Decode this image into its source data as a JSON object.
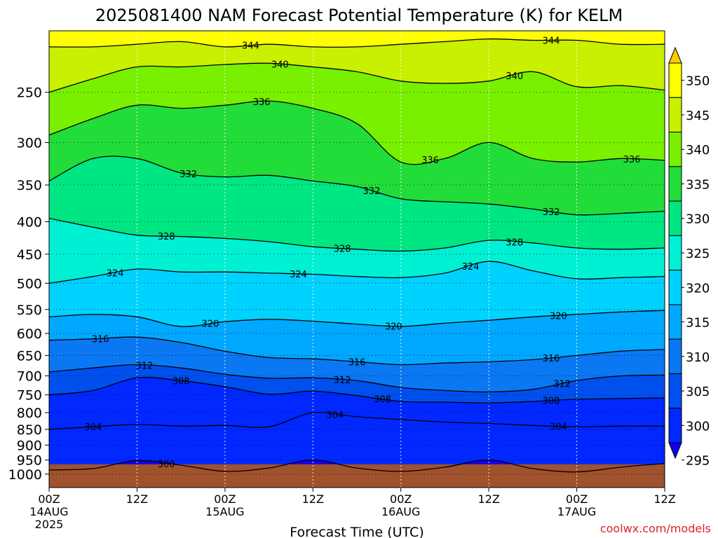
{
  "chart_data": {
    "type": "contour",
    "title": "2025081400 NAM Forecast Potential Temperature (K) for KELM",
    "xlabel": "Forecast Time (UTC)",
    "ylabel": "",
    "credit": "coolwx.com/models",
    "y_axis": {
      "scale": "log",
      "reversed": true,
      "range": [
        200,
        1050
      ],
      "ticks": [
        250,
        300,
        350,
        400,
        450,
        500,
        550,
        600,
        650,
        700,
        750,
        800,
        850,
        900,
        950,
        1000
      ]
    },
    "x_axis": {
      "range_hours": [
        0,
        84
      ],
      "ticks": [
        {
          "hour": 0,
          "label": "00Z",
          "sub": "14AUG",
          "sub2": "2025"
        },
        {
          "hour": 12,
          "label": "12Z",
          "sub": "",
          "sub2": ""
        },
        {
          "hour": 24,
          "label": "00Z",
          "sub": "15AUG",
          "sub2": ""
        },
        {
          "hour": 36,
          "label": "12Z",
          "sub": "",
          "sub2": ""
        },
        {
          "hour": 48,
          "label": "00Z",
          "sub": "16AUG",
          "sub2": ""
        },
        {
          "hour": 60,
          "label": "12Z",
          "sub": "",
          "sub2": ""
        },
        {
          "hour": 72,
          "label": "00Z",
          "sub": "17AUG",
          "sub2": ""
        },
        {
          "hour": 84,
          "label": "12Z",
          "sub": "",
          "sub2": ""
        }
      ]
    },
    "colorbar": {
      "labels": [
        295,
        300,
        305,
        310,
        315,
        320,
        325,
        330,
        335,
        340,
        345,
        350
      ],
      "colors": [
        "#1400e8",
        "#0028ff",
        "#0050ee",
        "#0a78f2",
        "#00a8ff",
        "#00d2ff",
        "#00f0d4",
        "#00e682",
        "#22dc3a",
        "#78f000",
        "#c8f000",
        "#ffff00",
        "#ffcc00"
      ]
    },
    "fill_levels": [
      {
        "value": 300,
        "color": "#0028ff"
      },
      {
        "value": 305,
        "color": "#0050ee"
      },
      {
        "value": 310,
        "color": "#0a78f2"
      },
      {
        "value": 315,
        "color": "#00a8ff"
      },
      {
        "value": 320,
        "color": "#00d2ff"
      },
      {
        "value": 325,
        "color": "#00f0d4"
      },
      {
        "value": 330,
        "color": "#00e682"
      },
      {
        "value": 335,
        "color": "#22dc3a"
      },
      {
        "value": 340,
        "color": "#78f000"
      },
      {
        "value": 345,
        "color": "#c8f000"
      },
      {
        "value": 350,
        "color": "#ffff00"
      }
    ],
    "below_ground_color": "#a0522d",
    "ground_pressure": 965,
    "series": [
      {
        "value": 300,
        "label": "300",
        "hours": [
          0,
          6,
          12,
          18,
          24,
          30,
          36,
          42,
          48,
          54,
          60,
          66,
          72,
          78,
          84
        ],
        "pressure": [
          985,
          980,
          952,
          968,
          990,
          978,
          950,
          978,
          990,
          975,
          950,
          980,
          992,
          975,
          962
        ]
      },
      {
        "value": 304,
        "label": "304",
        "hours": [
          0,
          6,
          12,
          18,
          24,
          30,
          36,
          42,
          48,
          54,
          60,
          66,
          72,
          78,
          84
        ],
        "pressure": [
          850,
          842,
          835,
          840,
          838,
          842,
          800,
          812,
          820,
          828,
          832,
          838,
          842,
          840,
          840
        ]
      },
      {
        "value": 308,
        "label": "308",
        "hours": [
          0,
          6,
          12,
          18,
          24,
          30,
          36,
          42,
          48,
          54,
          60,
          66,
          72,
          78,
          84
        ],
        "pressure": [
          750,
          738,
          705,
          712,
          728,
          748,
          740,
          752,
          768,
          770,
          772,
          768,
          762,
          760,
          758
        ]
      },
      {
        "value": 312,
        "label": "312",
        "hours": [
          0,
          6,
          12,
          18,
          24,
          30,
          36,
          42,
          48,
          54,
          60,
          66,
          72,
          78,
          84
        ],
        "pressure": [
          690,
          680,
          672,
          680,
          696,
          706,
          705,
          712,
          730,
          738,
          742,
          735,
          712,
          700,
          698
        ]
      },
      {
        "value": 316,
        "label": "316",
        "hours": [
          0,
          6,
          12,
          18,
          24,
          30,
          36,
          42,
          48,
          54,
          60,
          66,
          72,
          78,
          84
        ],
        "pressure": [
          615,
          612,
          608,
          620,
          640,
          655,
          658,
          665,
          672,
          668,
          665,
          660,
          650,
          640,
          636
        ]
      },
      {
        "value": 320,
        "label": "320",
        "hours": [
          0,
          6,
          12,
          18,
          24,
          30,
          36,
          42,
          48,
          54,
          60,
          66,
          72,
          78,
          84
        ],
        "pressure": [
          565,
          560,
          565,
          585,
          575,
          570,
          574,
          580,
          585,
          578,
          572,
          565,
          560,
          555,
          552
        ]
      },
      {
        "value": 324,
        "label": "324",
        "hours": [
          0,
          6,
          12,
          18,
          24,
          30,
          36,
          42,
          48,
          54,
          60,
          66,
          72,
          78,
          84
        ],
        "pressure": [
          500,
          488,
          475,
          480,
          480,
          482,
          484,
          488,
          490,
          482,
          462,
          478,
          492,
          490,
          488
        ]
      },
      {
        "value": 328,
        "label": "328",
        "hours": [
          0,
          6,
          12,
          18,
          24,
          30,
          36,
          42,
          48,
          54,
          60,
          66,
          72,
          78,
          84
        ],
        "pressure": [
          395,
          408,
          420,
          422,
          425,
          430,
          438,
          442,
          445,
          440,
          428,
          432,
          440,
          442,
          440
        ]
      },
      {
        "value": 332,
        "label": "332",
        "hours": [
          0,
          6,
          12,
          18,
          24,
          30,
          36,
          42,
          48,
          54,
          60,
          66,
          72,
          78,
          84
        ],
        "pressure": [
          345,
          318,
          318,
          335,
          340,
          338,
          345,
          352,
          368,
          372,
          375,
          382,
          390,
          388,
          385
        ]
      },
      {
        "value": 336,
        "label": "336",
        "hours": [
          0,
          6,
          12,
          18,
          24,
          30,
          36,
          42,
          48,
          54,
          60,
          66,
          72,
          78,
          84
        ],
        "pressure": [
          292,
          275,
          262,
          265,
          262,
          258,
          265,
          280,
          322,
          318,
          300,
          318,
          322,
          318,
          320
        ]
      },
      {
        "value": 340,
        "label": "340",
        "hours": [
          0,
          6,
          12,
          18,
          24,
          30,
          36,
          42,
          48,
          54,
          60,
          66,
          72,
          78,
          84
        ],
        "pressure": [
          250,
          238,
          228,
          228,
          226,
          225,
          228,
          232,
          240,
          242,
          240,
          232,
          245,
          244,
          248
        ]
      },
      {
        "value": 344,
        "label": "344",
        "hours": [
          0,
          6,
          12,
          18,
          24,
          30,
          36,
          42,
          48,
          54,
          60,
          66,
          72,
          78,
          84
        ],
        "pressure": [
          212,
          212,
          210,
          208,
          212,
          210,
          212,
          212,
          210,
          208,
          206,
          207,
          207,
          210,
          210
        ]
      }
    ],
    "contour_labels": [
      {
        "value": 344,
        "label": "344",
        "hour": 27.5
      },
      {
        "value": 344,
        "label": "344",
        "hour": 68.5
      },
      {
        "value": 340,
        "label": "340",
        "hour": 31.5
      },
      {
        "value": 340,
        "label": "340",
        "hour": 63.5
      },
      {
        "value": 336,
        "label": "336",
        "hour": 29.0
      },
      {
        "value": 336,
        "label": "336",
        "hour": 52.0
      },
      {
        "value": 336,
        "label": "336",
        "hour": 79.5
      },
      {
        "value": 332,
        "label": "332",
        "hour": 19.0
      },
      {
        "value": 332,
        "label": "332",
        "hour": 44.0
      },
      {
        "value": 332,
        "label": "332",
        "hour": 68.5
      },
      {
        "value": 328,
        "label": "328",
        "hour": 16.0
      },
      {
        "value": 328,
        "label": "328",
        "hour": 40.0
      },
      {
        "value": 328,
        "label": "328",
        "hour": 63.5
      },
      {
        "value": 324,
        "label": "324",
        "hour": 9.0
      },
      {
        "value": 324,
        "label": "324",
        "hour": 34.0
      },
      {
        "value": 324,
        "label": "324",
        "hour": 57.5
      },
      {
        "value": 320,
        "label": "320",
        "hour": 22.0
      },
      {
        "value": 320,
        "label": "320",
        "hour": 47.0
      },
      {
        "value": 320,
        "label": "320",
        "hour": 69.5
      },
      {
        "value": 316,
        "label": "316",
        "hour": 7.0
      },
      {
        "value": 316,
        "label": "316",
        "hour": 42.0
      },
      {
        "value": 316,
        "label": "316",
        "hour": 68.5
      },
      {
        "value": 312,
        "label": "312",
        "hour": 13.0
      },
      {
        "value": 312,
        "label": "312",
        "hour": 40.0
      },
      {
        "value": 312,
        "label": "312",
        "hour": 70.0
      },
      {
        "value": 308,
        "label": "308",
        "hour": 18.0
      },
      {
        "value": 308,
        "label": "308",
        "hour": 45.5
      },
      {
        "value": 308,
        "label": "308",
        "hour": 68.5
      },
      {
        "value": 304,
        "label": "304",
        "hour": 6.0
      },
      {
        "value": 304,
        "label": "304",
        "hour": 39.0
      },
      {
        "value": 304,
        "label": "304",
        "hour": 69.5
      },
      {
        "value": 300,
        "label": "300",
        "hour": 16.0
      }
    ]
  }
}
